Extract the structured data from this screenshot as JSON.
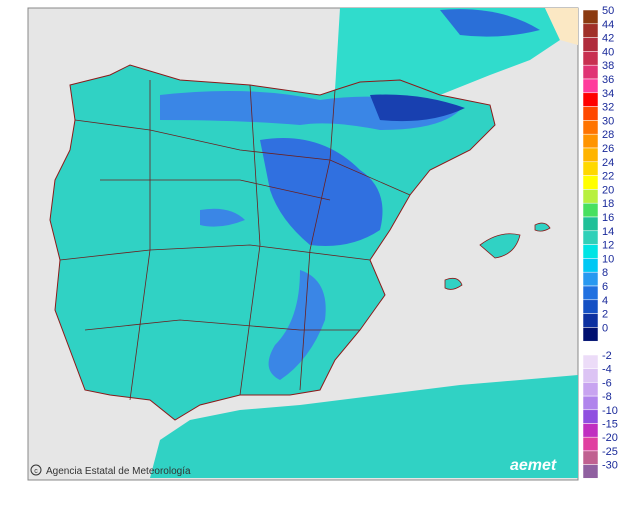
{
  "legend": {
    "items": [
      {
        "label": "50",
        "color": "#8b3a10"
      },
      {
        "label": "44",
        "color": "#a03028"
      },
      {
        "label": "42",
        "color": "#b02c3c"
      },
      {
        "label": "40",
        "color": "#c83050"
      },
      {
        "label": "38",
        "color": "#e03474"
      },
      {
        "label": "36",
        "color": "#ff3c9c"
      },
      {
        "label": "34",
        "color": "#ff0000"
      },
      {
        "label": "32",
        "color": "#ff4800"
      },
      {
        "label": "30",
        "color": "#ff7400"
      },
      {
        "label": "28",
        "color": "#ff9400"
      },
      {
        "label": "26",
        "color": "#ffb400"
      },
      {
        "label": "24",
        "color": "#ffd800"
      },
      {
        "label": "22",
        "color": "#ffff00"
      },
      {
        "label": "20",
        "color": "#b8f040"
      },
      {
        "label": "18",
        "color": "#48e060"
      },
      {
        "label": "16",
        "color": "#20c098"
      },
      {
        "label": "14",
        "color": "#30d0b8"
      },
      {
        "label": "12",
        "color": "#00e4e4"
      },
      {
        "label": "10",
        "color": "#00c8f4"
      },
      {
        "label": "8",
        "color": "#2898f0"
      },
      {
        "label": "6",
        "color": "#2070e0"
      },
      {
        "label": "4",
        "color": "#1450c4"
      },
      {
        "label": "2",
        "color": "#0c30a0"
      },
      {
        "label": "0",
        "color": "#001070"
      }
    ],
    "negative_items": [
      {
        "label": "-2",
        "color": "#ecdcf8"
      },
      {
        "label": "-4",
        "color": "#dcc4f4"
      },
      {
        "label": "-6",
        "color": "#c8a4f0"
      },
      {
        "label": "-8",
        "color": "#b084ec"
      },
      {
        "label": "-10",
        "color": "#9050e0"
      },
      {
        "label": "-15",
        "color": "#c030c0"
      },
      {
        "label": "-20",
        "color": "#e040a0"
      },
      {
        "label": "-25",
        "color": "#c06090"
      },
      {
        "label": "-30",
        "color": "#9060a0"
      }
    ]
  },
  "credit": "Agencia Estatal de Meteorología",
  "logo": "aemet"
}
